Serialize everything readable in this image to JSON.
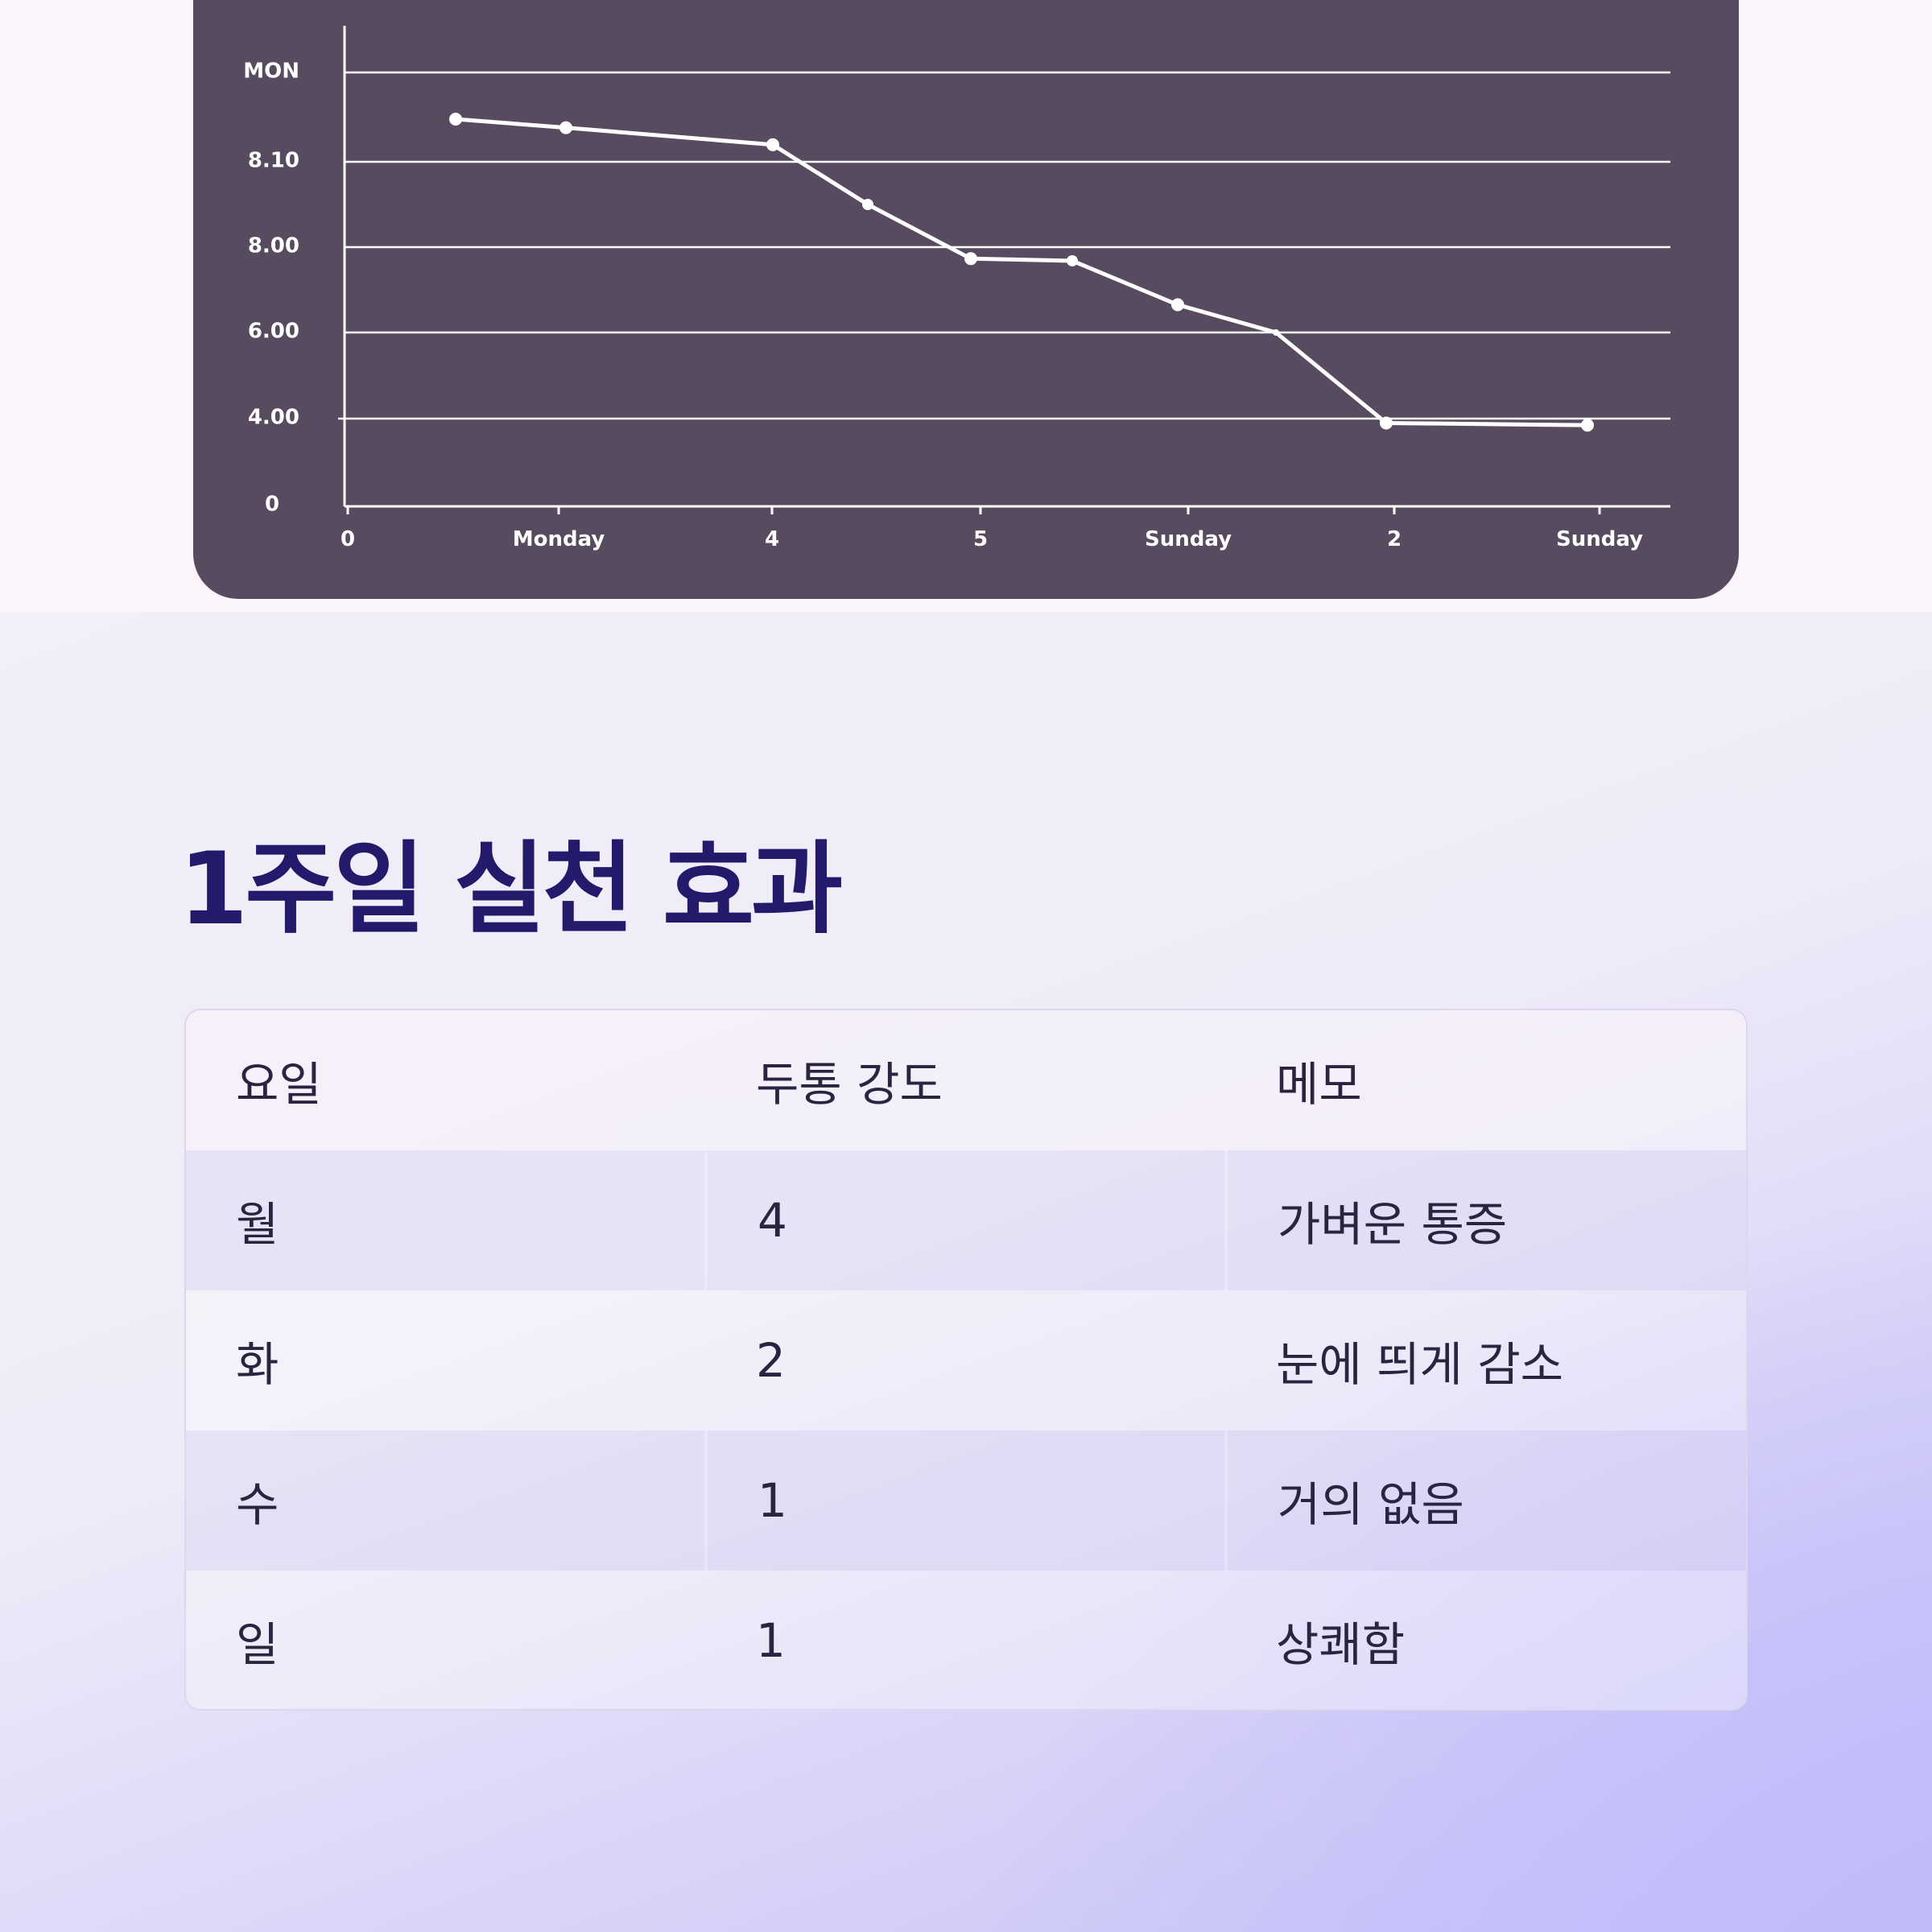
{
  "chart_data": {
    "type": "line",
    "title": "",
    "xlabel": "",
    "ylabel": "",
    "y_tick_labels": [
      "0",
      "4.00",
      "6.00",
      "8.00",
      "8.10",
      "MON"
    ],
    "x_tick_labels": [
      "0",
      "Monday",
      "4",
      "5",
      "Sunday",
      "2",
      "Sunday"
    ],
    "grid": true,
    "series": [
      {
        "values": [
          8.15,
          8.14,
          8.12,
          8.05,
          7.73,
          7.68,
          6.65,
          6.0,
          3.8,
          3.7
        ]
      }
    ],
    "colors": {
      "background": "#584a5f",
      "line": "#ffffff"
    }
  },
  "section": {
    "title": "1주일 실천 효과"
  },
  "table": {
    "headers": [
      "요일",
      "두통 강도",
      "메모"
    ],
    "rows": [
      [
        "월",
        "4",
        "가벼운 통증"
      ],
      [
        "화",
        "2",
        "눈에 띄게 감소"
      ],
      [
        "수",
        "1",
        "거의 없음"
      ],
      [
        "일",
        "1",
        "상쾌함"
      ]
    ]
  }
}
